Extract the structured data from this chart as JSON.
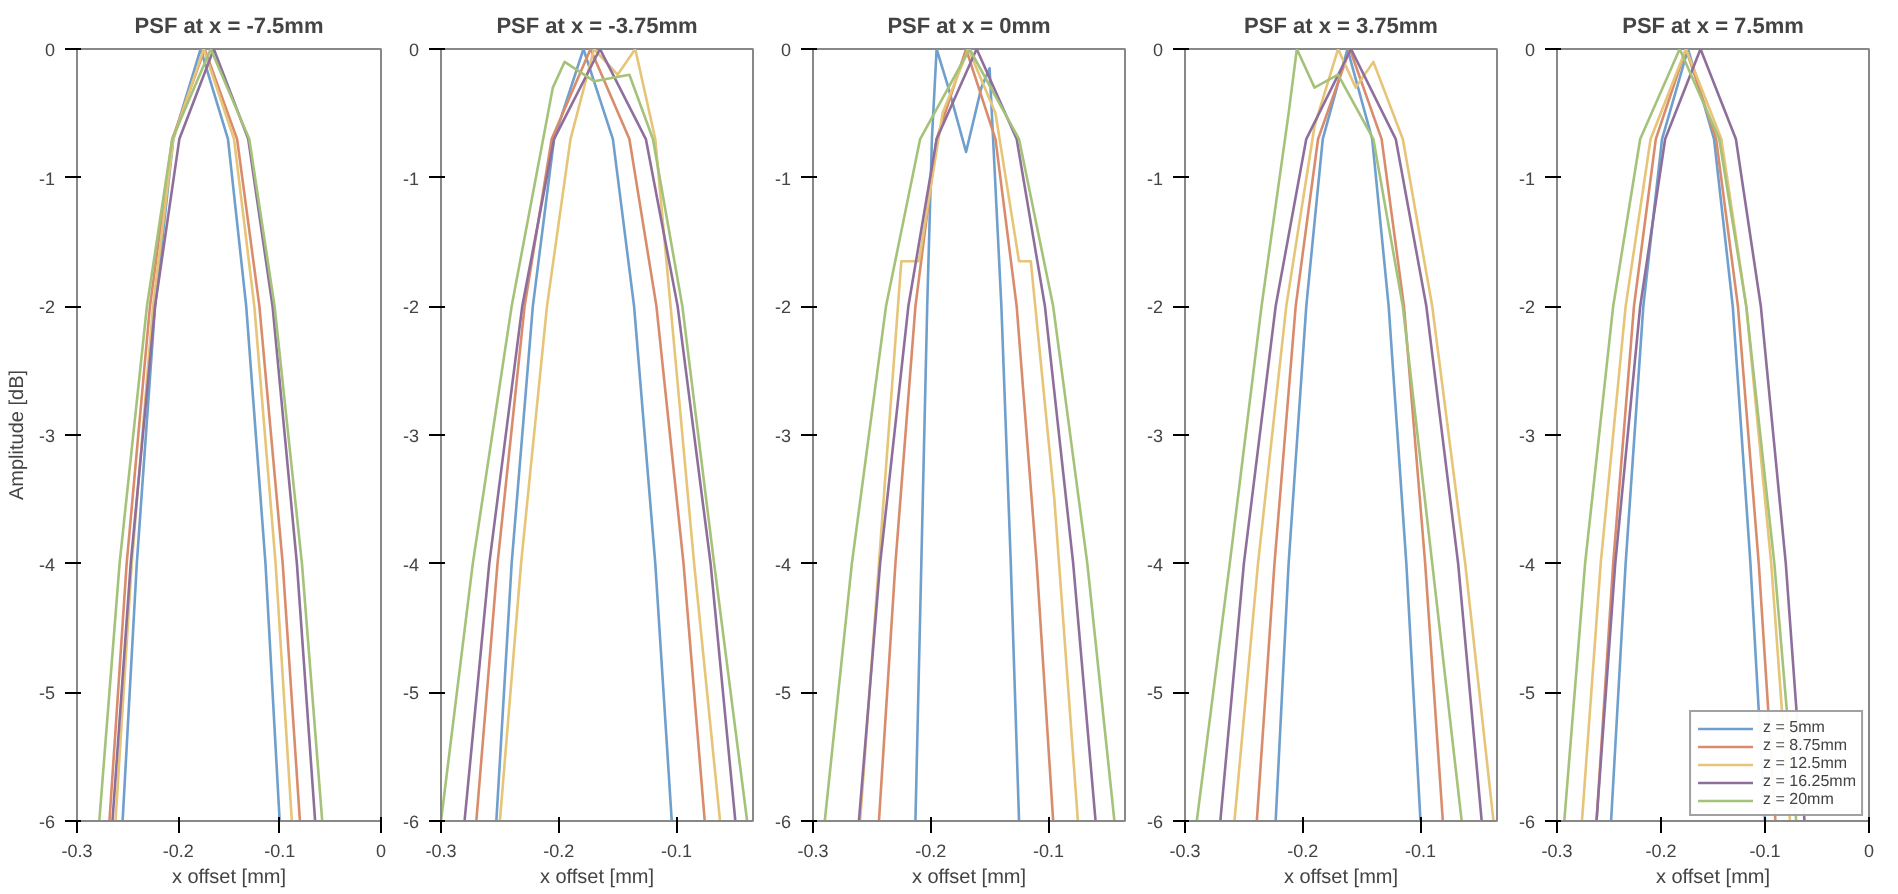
{
  "chart_data": [
    {
      "type": "line",
      "title": "PSF at x = -7.5mm",
      "xlabel": "x offset [mm]",
      "ylabel": "Amplitude [dB]",
      "xlim": [
        -0.3,
        0
      ],
      "ylim": [
        -6,
        0
      ],
      "xticks": [
        -0.3,
        -0.2,
        -0.1,
        0
      ],
      "yticks": [
        -6,
        -5,
        -4,
        -3,
        -2,
        -1,
        0
      ],
      "grid": false,
      "legend": false,
      "series": [
        {
          "color": "#6f9fcc",
          "x": [
            -0.255,
            -0.241,
            -0.223,
            -0.205,
            -0.178,
            -0.151,
            -0.133,
            -0.114,
            -0.1
          ],
          "values": [
            -6,
            -4,
            -2,
            -0.7,
            0,
            -0.7,
            -2,
            -4,
            -6
          ]
        },
        {
          "color": "#d98c6c",
          "x": [
            -0.268,
            -0.251,
            -0.228,
            -0.206,
            -0.174,
            -0.142,
            -0.12,
            -0.097,
            -0.08
          ],
          "values": [
            -6,
            -4,
            -2,
            -0.7,
            0,
            -0.7,
            -2,
            -4,
            -6
          ]
        },
        {
          "color": "#e6c478",
          "x": [
            -0.262,
            -0.246,
            -0.225,
            -0.205,
            -0.175,
            -0.145,
            -0.125,
            -0.104,
            -0.088
          ],
          "values": [
            -6,
            -4,
            -2,
            -0.7,
            0,
            -0.7,
            -2,
            -4,
            -6
          ]
        },
        {
          "color": "#8e6f9c",
          "x": [
            -0.265,
            -0.247,
            -0.223,
            -0.199,
            -0.165,
            -0.131,
            -0.107,
            -0.083,
            -0.065
          ],
          "values": [
            -6,
            -4,
            -2,
            -0.7,
            0,
            -0.7,
            -2,
            -4,
            -6
          ]
        },
        {
          "color": "#a4c27a",
          "x": [
            -0.278,
            -0.258,
            -0.231,
            -0.206,
            -0.168,
            -0.13,
            -0.105,
            -0.078,
            -0.058
          ],
          "values": [
            -6,
            -4,
            -2,
            -0.7,
            0,
            -0.7,
            -2,
            -4,
            -6
          ]
        }
      ]
    },
    {
      "type": "line",
      "title": "PSF at x = -3.75mm",
      "xlabel": "x offset [mm]",
      "xlim": [
        -0.3,
        -0.035
      ],
      "ylim": [
        -6,
        0
      ],
      "xticks": [
        -0.3,
        -0.2,
        -0.1
      ],
      "yticks": [
        -6,
        -5,
        -4,
        -3,
        -2,
        -1,
        0
      ],
      "grid": false,
      "legend": false,
      "series": [
        {
          "color": "#6f9fcc",
          "x": [
            -0.253,
            -0.24,
            -0.222,
            -0.204,
            -0.179,
            -0.154,
            -0.136,
            -0.118,
            -0.104
          ],
          "values": [
            -6,
            -4,
            -2,
            -0.7,
            0,
            -0.7,
            -2,
            -4,
            -6
          ]
        },
        {
          "color": "#d98c6c",
          "x": [
            -0.27,
            -0.252,
            -0.229,
            -0.206,
            -0.173,
            -0.14,
            -0.117,
            -0.094,
            -0.076
          ],
          "values": [
            -6,
            -4,
            -2,
            -0.7,
            0,
            -0.7,
            -2,
            -4,
            -6
          ]
        },
        {
          "color": "#e6c478",
          "x": [
            -0.25,
            -0.232,
            -0.21,
            -0.19,
            -0.17,
            -0.15,
            -0.135,
            -0.118,
            -0.105,
            -0.085,
            -0.063
          ],
          "values": [
            -6,
            -4,
            -2,
            -0.7,
            0,
            -0.2,
            0,
            -0.7,
            -2,
            -4,
            -6
          ]
        },
        {
          "color": "#8e6f9c",
          "x": [
            -0.28,
            -0.259,
            -0.231,
            -0.204,
            -0.165,
            -0.126,
            -0.099,
            -0.071,
            -0.05
          ],
          "values": [
            -6,
            -4,
            -2,
            -0.7,
            0,
            -0.7,
            -2,
            -4,
            -6
          ]
        },
        {
          "color": "#a4c27a",
          "x": [
            -0.3,
            -0.273,
            -0.24,
            -0.205,
            -0.195,
            -0.17,
            -0.14,
            -0.12,
            -0.095,
            -0.068,
            -0.04
          ],
          "values": [
            -6,
            -4,
            -2,
            -0.3,
            -0.1,
            -0.25,
            -0.2,
            -0.7,
            -2,
            -4,
            -6
          ]
        }
      ]
    },
    {
      "type": "line",
      "title": "PSF at x = 0mm",
      "xlabel": "x offset [mm]",
      "xlim": [
        -0.3,
        -0.035
      ],
      "ylim": [
        -6,
        0
      ],
      "xticks": [
        -0.3,
        -0.2,
        -0.1
      ],
      "yticks": [
        -6,
        -5,
        -4,
        -3,
        -2,
        -1,
        0
      ],
      "grid": false,
      "legend": false,
      "series": [
        {
          "color": "#6f9fcc",
          "x": [
            -0.213,
            -0.208,
            -0.203,
            -0.199,
            -0.195,
            -0.185,
            -0.17,
            -0.157,
            -0.15,
            -0.14,
            -0.132,
            -0.125
          ],
          "values": [
            -6,
            -4,
            -2,
            -0.7,
            0,
            -0.3,
            -0.8,
            -0.3,
            -0.15,
            -2,
            -4,
            -6
          ]
        },
        {
          "color": "#d98c6c",
          "x": [
            -0.244,
            -0.23,
            -0.213,
            -0.195,
            -0.17,
            -0.145,
            -0.127,
            -0.11,
            -0.096
          ],
          "values": [
            -6,
            -4,
            -2,
            -0.7,
            0,
            -0.7,
            -2,
            -4,
            -6
          ]
        },
        {
          "color": "#e6c478",
          "x": [
            -0.26,
            -0.24,
            -0.225,
            -0.21,
            -0.19,
            -0.168,
            -0.145,
            -0.125,
            -0.115,
            -0.095,
            -0.075
          ],
          "values": [
            -6,
            -3.5,
            -1.65,
            -1.65,
            -0.5,
            0,
            -0.5,
            -1.65,
            -1.65,
            -3.5,
            -6
          ]
        },
        {
          "color": "#8e6f9c",
          "x": [
            -0.261,
            -0.243,
            -0.219,
            -0.195,
            -0.161,
            -0.127,
            -0.103,
            -0.079,
            -0.06
          ],
          "values": [
            -6,
            -4,
            -2,
            -0.7,
            0,
            -0.7,
            -2,
            -4,
            -6
          ]
        },
        {
          "color": "#a4c27a",
          "x": [
            -0.29,
            -0.267,
            -0.238,
            -0.209,
            -0.167,
            -0.125,
            -0.096,
            -0.067,
            -0.044
          ],
          "values": [
            -6,
            -4,
            -2,
            -0.7,
            0,
            -0.7,
            -2,
            -4,
            -6
          ]
        }
      ]
    },
    {
      "type": "line",
      "title": "PSF at x = 3.75mm",
      "xlabel": "x offset [mm]",
      "xlim": [
        -0.3,
        -0.035
      ],
      "ylim": [
        -6,
        0
      ],
      "xticks": [
        -0.3,
        -0.2,
        -0.1
      ],
      "yticks": [
        -6,
        -5,
        -4,
        -3,
        -2,
        -1,
        0
      ],
      "grid": false,
      "legend": false,
      "series": [
        {
          "color": "#6f9fcc",
          "x": [
            -0.223,
            -0.212,
            -0.197,
            -0.183,
            -0.162,
            -0.141,
            -0.127,
            -0.112,
            -0.1
          ],
          "values": [
            -6,
            -4,
            -2,
            -0.7,
            0,
            -0.7,
            -2,
            -4,
            -6
          ]
        },
        {
          "color": "#d98c6c",
          "x": [
            -0.239,
            -0.224,
            -0.206,
            -0.187,
            -0.16,
            -0.133,
            -0.114,
            -0.096,
            -0.081
          ],
          "values": [
            -6,
            -4,
            -2,
            -0.7,
            0,
            -0.7,
            -2,
            -4,
            -6
          ]
        },
        {
          "color": "#e6c478",
          "x": [
            -0.258,
            -0.238,
            -0.214,
            -0.19,
            -0.17,
            -0.155,
            -0.14,
            -0.115,
            -0.09,
            -0.062,
            -0.038
          ],
          "values": [
            -6,
            -4,
            -2,
            -0.6,
            0,
            -0.3,
            -0.1,
            -0.7,
            -2,
            -4,
            -6
          ]
        },
        {
          "color": "#8e6f9c",
          "x": [
            -0.27,
            -0.25,
            -0.223,
            -0.197,
            -0.159,
            -0.121,
            -0.095,
            -0.068,
            -0.048
          ],
          "values": [
            -6,
            -4,
            -2,
            -0.7,
            0,
            -0.7,
            -2,
            -4,
            -6
          ]
        },
        {
          "color": "#a4c27a",
          "x": [
            -0.29,
            -0.262,
            -0.235,
            -0.212,
            -0.205,
            -0.19,
            -0.17,
            -0.14,
            -0.115,
            -0.09,
            -0.065
          ],
          "values": [
            -6,
            -4,
            -2,
            -0.5,
            0,
            -0.3,
            -0.2,
            -0.7,
            -2,
            -4,
            -6
          ]
        }
      ]
    },
    {
      "type": "line",
      "title": "PSF at x = 7.5mm",
      "xlabel": "x offset [mm]",
      "xlim": [
        -0.3,
        0
      ],
      "ylim": [
        -6,
        0
      ],
      "xticks": [
        -0.3,
        -0.2,
        -0.1,
        0
      ],
      "yticks": [
        -6,
        -5,
        -4,
        -3,
        -2,
        -1,
        0
      ],
      "grid": false,
      "legend": "bottom right",
      "series": [
        {
          "name": "z = 5mm",
          "color": "#6f9fcc",
          "x": [
            -0.248,
            -0.234,
            -0.217,
            -0.199,
            -0.174,
            -0.149,
            -0.131,
            -0.114,
            -0.1
          ],
          "values": [
            -6,
            -4,
            -2,
            -0.7,
            0,
            -0.7,
            -2,
            -4,
            -6
          ]
        },
        {
          "name": "z = 8.75mm",
          "color": "#d98c6c",
          "x": [
            -0.262,
            -0.246,
            -0.226,
            -0.205,
            -0.176,
            -0.147,
            -0.126,
            -0.106,
            -0.09
          ],
          "values": [
            -6,
            -4,
            -2,
            -0.7,
            0,
            -0.7,
            -2,
            -4,
            -6
          ]
        },
        {
          "name": "z = 12.5mm",
          "color": "#e6c478",
          "x": [
            -0.276,
            -0.258,
            -0.234,
            -0.21,
            -0.176,
            -0.142,
            -0.118,
            -0.094,
            -0.076
          ],
          "values": [
            -6,
            -4,
            -2,
            -0.7,
            0,
            -0.7,
            -2,
            -4,
            -6
          ]
        },
        {
          "name": "z = 16.25mm",
          "color": "#8e6f9c",
          "x": [
            -0.262,
            -0.244,
            -0.22,
            -0.196,
            -0.162,
            -0.128,
            -0.104,
            -0.08,
            -0.062
          ],
          "values": [
            -6,
            -4,
            -2,
            -0.7,
            0,
            -0.7,
            -2,
            -4,
            -6
          ]
        },
        {
          "name": "z = 20mm",
          "color": "#a4c27a",
          "x": [
            -0.293,
            -0.273,
            -0.246,
            -0.22,
            -0.182,
            -0.144,
            -0.118,
            -0.091,
            -0.07
          ],
          "values": [
            -6,
            -4,
            -2,
            -0.7,
            0,
            -0.7,
            -2,
            -4,
            -6
          ]
        }
      ]
    }
  ]
}
